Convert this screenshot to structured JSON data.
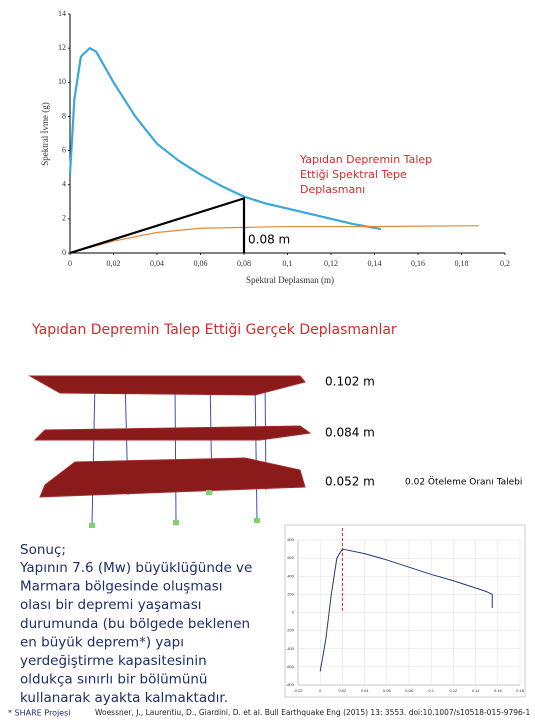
{
  "chart_data": [
    {
      "type": "line",
      "x_label": "Spektral Deplasman (m)",
      "y_label": "Spektral İvme (g)",
      "xlim": [
        0,
        0.2
      ],
      "ylim": [
        0,
        14
      ],
      "xticks": [
        0,
        {
          "value": 0.02,
          "label": "0,02"
        },
        {
          "value": 0.04,
          "label": "0,04"
        },
        {
          "value": 0.06,
          "label": "0,06"
        },
        {
          "value": 0.08,
          "label": "0,08"
        },
        {
          "value": 0.1,
          "label": "0,1"
        },
        {
          "value": 0.12,
          "label": "0,12"
        },
        {
          "value": 0.14,
          "label": "0,14"
        },
        {
          "value": 0.16,
          "label": "0,16"
        },
        {
          "value": 0.18,
          "label": "0,18"
        },
        {
          "value": 0.2,
          "label": "0,2"
        }
      ],
      "yticks": [
        0,
        2,
        4,
        6,
        8,
        10,
        12,
        14
      ],
      "series": [
        {
          "color": "#3aa8d8",
          "x": [
            0,
            0.002,
            0.005,
            0.009,
            0.012,
            0.02,
            0.03,
            0.04,
            0.05,
            0.06,
            0.07,
            0.08,
            0.09,
            0.1,
            0.11,
            0.12,
            0.13,
            0.143
          ],
          "values": [
            4.6,
            9,
            11.5,
            12,
            11.8,
            10,
            8,
            6.4,
            5.4,
            4.6,
            3.9,
            3.3,
            2.9,
            2.6,
            2.3,
            2.0,
            1.7,
            1.4
          ]
        },
        {
          "color": "#e08a3c",
          "x": [
            0,
            0.02,
            0.04,
            0.06,
            0.08,
            0.1,
            0.14,
            0.188
          ],
          "values": [
            0,
            0.7,
            1.2,
            1.45,
            1.5,
            1.55,
            1.55,
            1.6
          ]
        },
        {
          "color": "#000000",
          "x": [
            0,
            0.08,
            0.08
          ],
          "values": [
            0,
            3.2,
            0
          ]
        }
      ],
      "annotation": [
        "Yapıdan Depremin Talep",
        "Ettiği Spektral Tepe",
        "Deplasmanı"
      ],
      "demand_label": "0.08 m"
    },
    {
      "type": "line",
      "xlim": [
        -0.02,
        0.18
      ],
      "ylim": [
        -800,
        800
      ],
      "xticks": [
        -0.02,
        0,
        0.02,
        0.04,
        0.06,
        0.08,
        0.1,
        0.12,
        0.14,
        0.16,
        0.18
      ],
      "yticks": [
        -800,
        -600,
        -400,
        -200,
        0,
        200,
        400,
        600,
        800
      ],
      "series": [
        {
          "color": "#1f3a7a",
          "x": [
            0,
            0.005,
            0.01,
            0.015,
            0.02,
            0.04,
            0.06,
            0.08,
            0.1,
            0.12,
            0.14,
            0.15,
            0.155,
            0.155
          ],
          "values": [
            -650,
            -300,
            200,
            600,
            700,
            650,
            580,
            500,
            420,
            350,
            270,
            230,
            200,
            50
          ]
        }
      ],
      "vline_x": 0.02
    }
  ],
  "section_title": "Yapıdan Depremin Talep Ettiği Gerçek Deplasmanlar",
  "building": {
    "floor_labels": [
      "0.102 m",
      "0.084 m",
      "0.052 m"
    ],
    "drift_label": "0.02 Öteleme Oranı Talebi"
  },
  "conclusion": {
    "heading": "Sonuç;",
    "lines": [
      "Yapının 7.6 (Mw) büyüklüğünde ve",
      "Marmara bölgesinde oluşması",
      "olası bir depremi yaşaması",
      "durumunda (bu bölgede beklenen",
      "en büyük deprem*) yapı",
      "yerdeğiştirme kapasitesinin",
      "oldukça sınırlı bir bölümünü",
      "kullanarak ayakta kalmaktadır."
    ]
  },
  "footer": {
    "source": "* SHARE Projesi",
    "citation": "Woessner, J., Laurentiu, D., Giardini, D. et al. Bull Earthquake Eng (2015) 13: 3553. doi:10.1007/s10518-015-9796-1"
  }
}
